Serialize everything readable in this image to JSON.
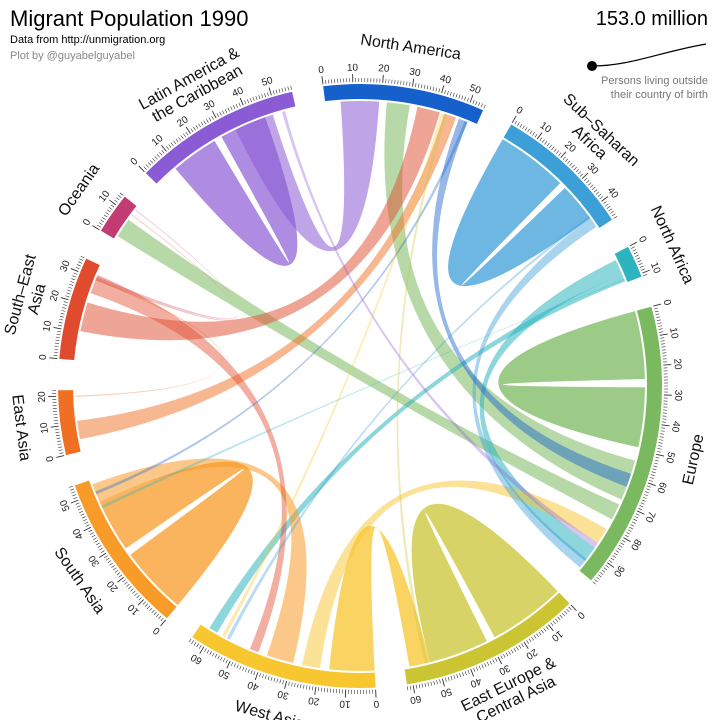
{
  "header": {
    "title": "Migrant Population 1990",
    "subtitle": "Data from http://unmigration.org",
    "credit": "Plot by @guyabelguyabel"
  },
  "legend": {
    "total": "153.0 million",
    "note": "Persons living outside their country of birth"
  },
  "chart_data": {
    "type": "chord",
    "unit": "millions",
    "total": 153.0,
    "regions": [
      {
        "name": "North America",
        "label_lines": [
          "North America"
        ],
        "color": "#1660cc",
        "max": 55,
        "tick_step": 10
      },
      {
        "name": "Sub-Saharan Africa",
        "label_lines": [
          "Sub–Saharan",
          "Africa"
        ],
        "color": "#3d9fd8",
        "max": 47,
        "tick_step": 10
      },
      {
        "name": "North Africa",
        "label_lines": [
          "North Africa"
        ],
        "color": "#2db4bf",
        "max": 11,
        "tick_step": 10
      },
      {
        "name": "Europe",
        "label_lines": [
          "Europe"
        ],
        "color": "#7bb960",
        "max": 98,
        "tick_step": 10
      },
      {
        "name": "East Europe & Central Asia",
        "label_lines": [
          "East Europe &",
          "Central Asia"
        ],
        "color": "#cbc433",
        "max": 62,
        "tick_step": 10
      },
      {
        "name": "West Asia",
        "label_lines": [
          "West Asia"
        ],
        "color": "#f8c62e",
        "max": 65,
        "tick_step": 10
      },
      {
        "name": "South Asia",
        "label_lines": [
          "South Asia"
        ],
        "color": "#f99b28",
        "max": 55,
        "tick_step": 10
      },
      {
        "name": "East Asia",
        "label_lines": [
          "East Asia"
        ],
        "color": "#f06f22",
        "max": 22,
        "tick_step": 10
      },
      {
        "name": "South-East Asia",
        "label_lines": [
          "South–East",
          "Asia"
        ],
        "color": "#e04b2e",
        "max": 35,
        "tick_step": 10
      },
      {
        "name": "Oceania",
        "label_lines": [
          "Oceania"
        ],
        "color": "#c23b72",
        "max": 14,
        "tick_step": 10
      },
      {
        "name": "Latin America & the Caribbean",
        "label_lines": [
          "Latin America &",
          "the Caribbean"
        ],
        "color": "#8b5bd6",
        "max": 57,
        "tick_step": 10
      }
    ]
  }
}
